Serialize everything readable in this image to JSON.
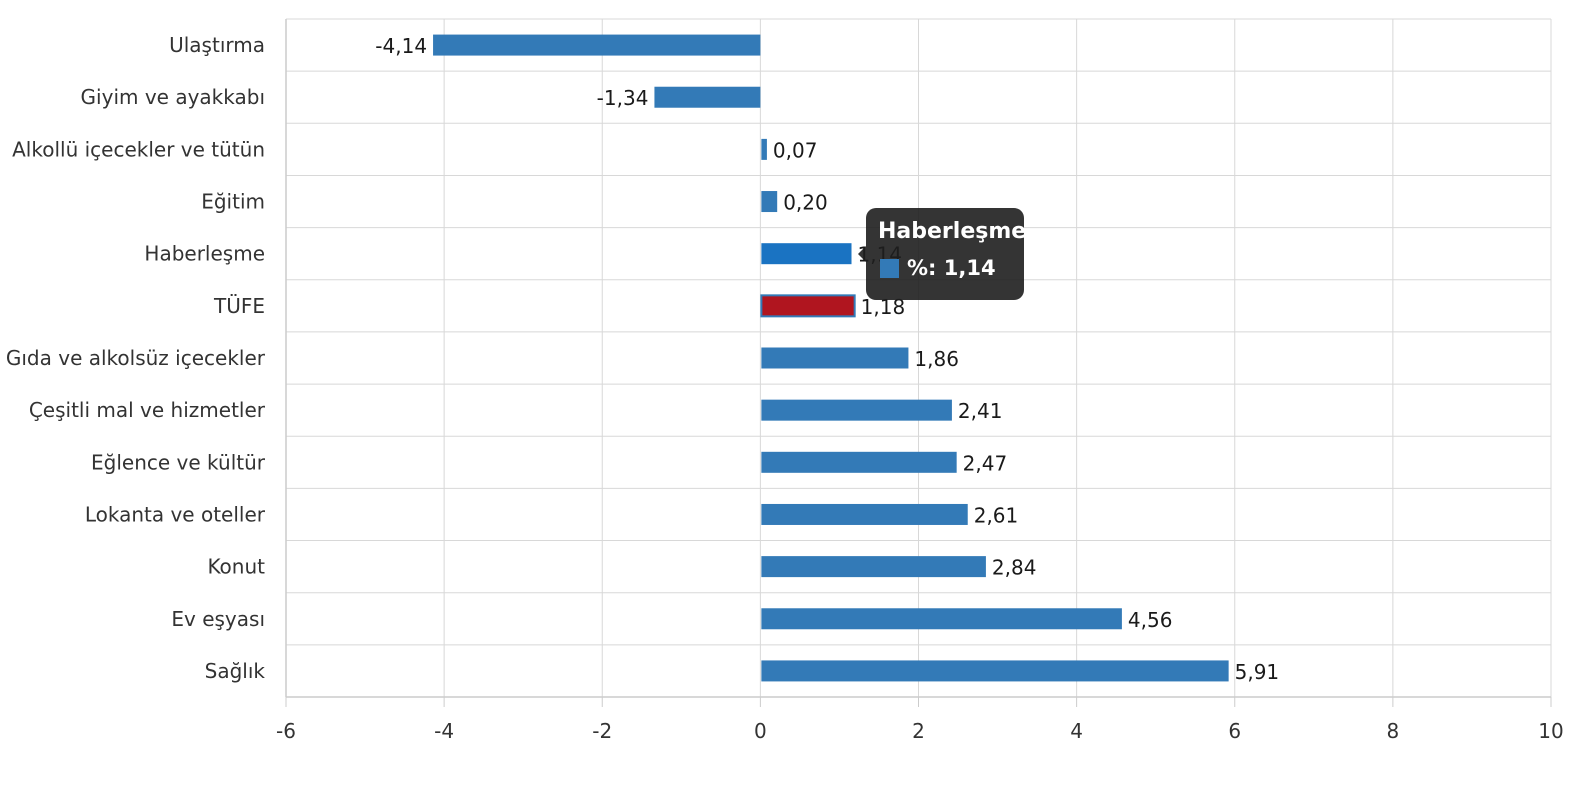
{
  "chart_data": {
    "type": "bar",
    "orientation": "horizontal",
    "categories": [
      "Ulaştırma",
      "Giyim ve ayakkabı",
      "Alkollü içecekler ve tütün",
      "Eğitim",
      "Haberleşme",
      "TÜFE",
      "Gıda ve alkolsüz içecekler",
      "Çeşitli mal ve hizmetler",
      "Eğlence ve kültür",
      "Lokanta ve oteller",
      "Konut",
      "Ev eşyası",
      "Sağlık"
    ],
    "series": [
      {
        "values": [
          -4.14,
          -1.34,
          0.07,
          0.2,
          1.14,
          1.18,
          1.86,
          2.41,
          2.47,
          2.61,
          2.84,
          4.56,
          5.91
        ]
      }
    ],
    "data_labels": [
      "-4,14",
      "-1,34",
      "0,07",
      "0,20",
      "1,14",
      "1,18",
      "1,86",
      "2,41",
      "2,47",
      "2,61",
      "2,84",
      "4,56",
      "5,91"
    ],
    "xlim": [
      -6,
      10
    ],
    "x_ticks": [
      "-6",
      "-4",
      "-2",
      "0",
      "2",
      "4",
      "6",
      "8",
      "10"
    ],
    "grid": true,
    "colors": {
      "bar": "#337ab7",
      "bar_hover": "#1a73c2",
      "highlight": "#b0151f",
      "grid": "#d8d8d8",
      "axis": "#cccccc"
    },
    "highlight_category": "TÜFE",
    "hover_category": "Haberleşme"
  },
  "tooltip": {
    "title": "Haberleşme",
    "row_text": "%: 1,14",
    "swatch_color": "#337ab7"
  }
}
